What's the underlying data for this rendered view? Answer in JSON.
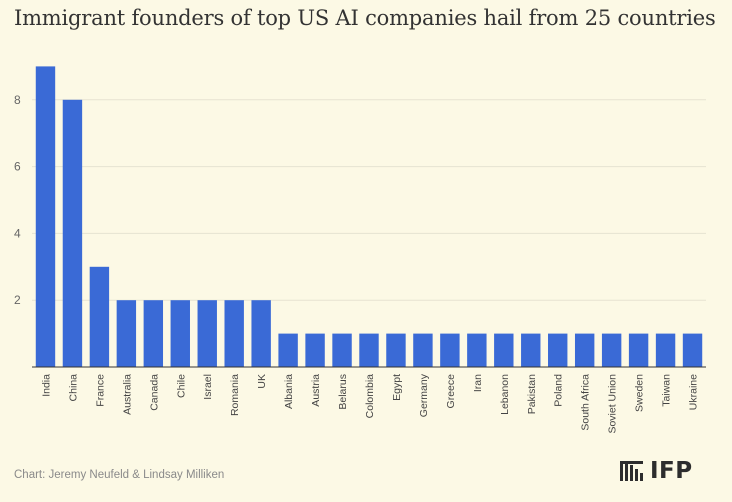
{
  "chart_data": {
    "type": "bar",
    "title": "Immigrant founders of top US AI companies hail from 25 countries",
    "xlabel": "",
    "ylabel": "",
    "ylim": [
      0,
      9
    ],
    "yticks": [
      2,
      4,
      6,
      8
    ],
    "grid": true,
    "categories": [
      "India",
      "China",
      "France",
      "Australia",
      "Canada",
      "Chile",
      "Israel",
      "Romania",
      "UK",
      "Albania",
      "Austria",
      "Belarus",
      "Colombia",
      "Egypt",
      "Germany",
      "Greece",
      "Iran",
      "Lebanon",
      "Pakistan",
      "Poland",
      "South Africa",
      "Soviet Union",
      "Sweden",
      "Taiwan",
      "Ukraine"
    ],
    "values": [
      9,
      8,
      3,
      2,
      2,
      2,
      2,
      2,
      2,
      1,
      1,
      1,
      1,
      1,
      1,
      1,
      1,
      1,
      1,
      1,
      1,
      1,
      1,
      1,
      1
    ],
    "bar_color": "#3a6ad6",
    "grid_color": "#e6e3d2"
  },
  "credit": "Chart: Jeremy Neufeld & Lindsay Milliken",
  "logo": {
    "text": "IFP",
    "icon": "ifp-logo-icon"
  }
}
